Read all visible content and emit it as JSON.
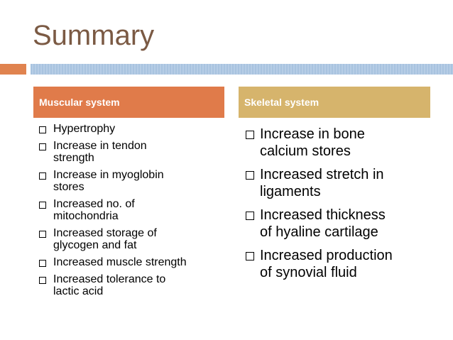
{
  "header": {
    "title": "Summary"
  },
  "columns": [
    {
      "heading": "Muscular system",
      "items": [
        [
          "Hypertrophy"
        ],
        [
          "Increase in tendon",
          "strength"
        ],
        [
          "Increase in myoglobin",
          "stores"
        ],
        [
          "Increased no. of",
          "mitochondria"
        ],
        [
          "Increased storage of",
          "glycogen and fat"
        ],
        [
          "Increased muscle strength"
        ],
        [
          "Increased tolerance to",
          "lactic acid"
        ]
      ]
    },
    {
      "heading": "Skeletal system",
      "items": [
        [
          "Increase in bone",
          "calcium stores"
        ],
        [
          "Increased stretch in",
          "ligaments"
        ],
        [
          "Increased thickness",
          "of hyaline cartilage"
        ],
        [
          "Increased production",
          "of synovial fluid"
        ]
      ]
    }
  ]
}
